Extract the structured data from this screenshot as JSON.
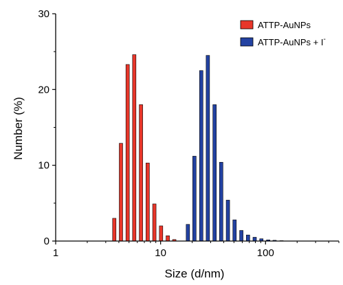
{
  "chart_data": {
    "type": "bar",
    "title": "",
    "xlabel": "Size (d/nm)",
    "ylabel": "Number (%)",
    "x_scale": "log",
    "xlim": [
      1,
      500
    ],
    "ylim": [
      0,
      30
    ],
    "x_ticks": [
      {
        "value": 1,
        "label": "1"
      },
      {
        "value": 10,
        "label": "10"
      },
      {
        "value": 100,
        "label": "100"
      }
    ],
    "y_ticks": [
      {
        "value": 0,
        "label": "0"
      },
      {
        "value": 10,
        "label": "10"
      },
      {
        "value": 20,
        "label": "20"
      },
      {
        "value": 30,
        "label": "30"
      }
    ],
    "grid": false,
    "legend_position": "top-right",
    "series": [
      {
        "name": "ATTP-AuNPs",
        "color": "#e8362a",
        "x": [
          3.62,
          4.19,
          4.85,
          5.61,
          6.5,
          7.53,
          8.72,
          10.1,
          11.7,
          13.5
        ],
        "values": [
          3.0,
          12.9,
          23.3,
          24.6,
          18.0,
          10.3,
          4.9,
          2.0,
          0.7,
          0.2
        ]
      },
      {
        "name": "ATTP-AuNPs + I",
        "name_superscript": "-",
        "color": "#2342a2",
        "x": [
          18.2,
          21.0,
          24.4,
          28.2,
          32.7,
          37.8,
          43.8,
          50.7,
          58.8,
          68.1,
          78.8,
          91.3,
          106,
          122,
          142
        ],
        "values": [
          2.2,
          11.2,
          22.5,
          24.5,
          18.0,
          10.4,
          5.4,
          2.8,
          1.4,
          0.8,
          0.5,
          0.3,
          0.15,
          0.1,
          0.05
        ]
      }
    ]
  }
}
